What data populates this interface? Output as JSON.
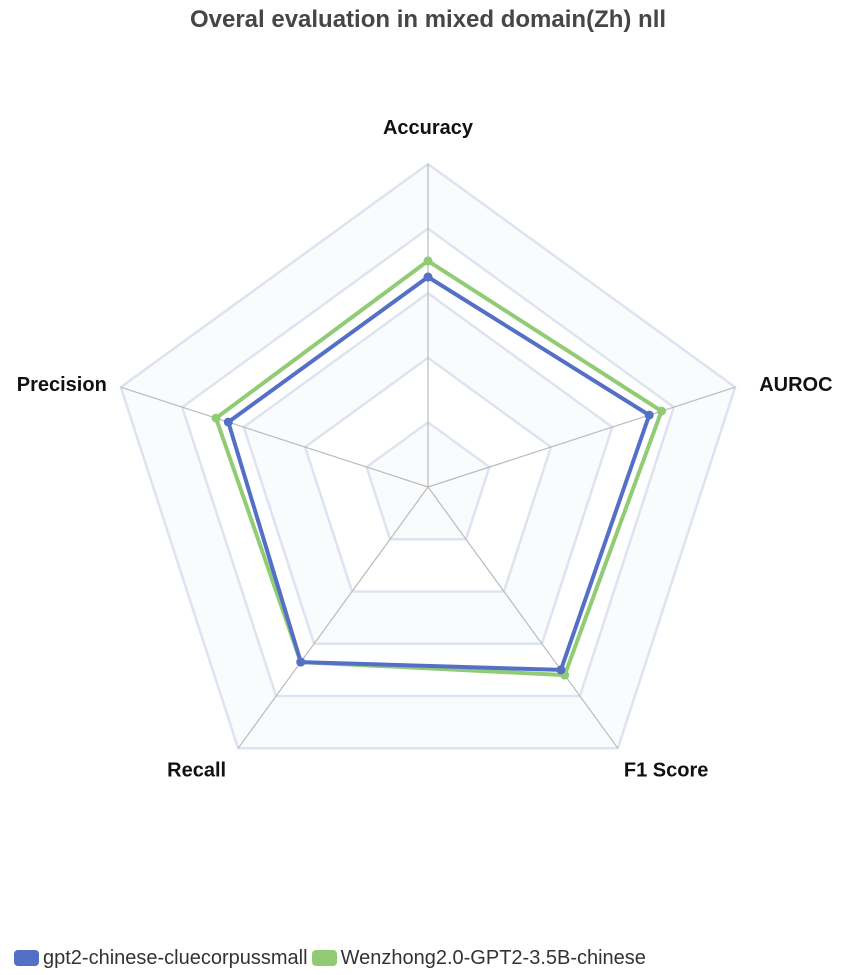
{
  "chart_data": {
    "type": "radar",
    "title": "Overal evaluation in mixed domain(Zh) nll",
    "indicators": [
      "Accuracy",
      "AUROC",
      "F1 Score",
      "Recall",
      "Precision"
    ],
    "max": 1.0,
    "split_number": 5,
    "series": [
      {
        "name": "gpt2-chinese-cluecorpussmall",
        "color": "#5470c6",
        "values": [
          0.65,
          0.72,
          0.7,
          0.67,
          0.65
        ]
      },
      {
        "name": "Wenzhong2.0-GPT2-3.5B-chinese",
        "color": "#91cc75",
        "values": [
          0.7,
          0.76,
          0.72,
          0.67,
          0.69
        ]
      }
    ],
    "legend_position": "bottom"
  }
}
